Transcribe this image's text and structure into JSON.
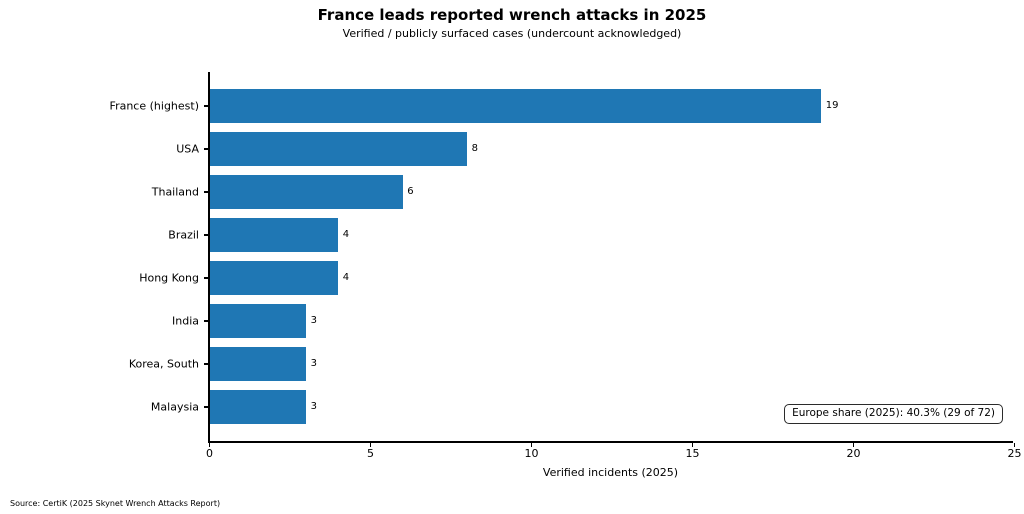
{
  "chart_data": {
    "type": "bar",
    "orientation": "horizontal",
    "title": "France leads reported wrench attacks in 2025",
    "subtitle": "Verified / publicly surfaced cases (undercount acknowledged)",
    "categories": [
      "France (highest)",
      "USA",
      "Thailand",
      "Brazil",
      "Hong Kong",
      "India",
      "Korea, South",
      "Malaysia"
    ],
    "values": [
      19,
      8,
      6,
      4,
      4,
      3,
      3,
      3
    ],
    "xlabel": "Verified incidents (2025)",
    "xlim": [
      0,
      25
    ],
    "xticks": [
      0,
      5,
      10,
      15,
      20,
      25
    ],
    "bar_color": "#1f77b4",
    "grid": false,
    "legend": null,
    "annotation": "Europe share (2025): 40.3% (29 of 72)",
    "source": "Source: CertiK (2025 Skynet Wrench Attacks Report)"
  }
}
